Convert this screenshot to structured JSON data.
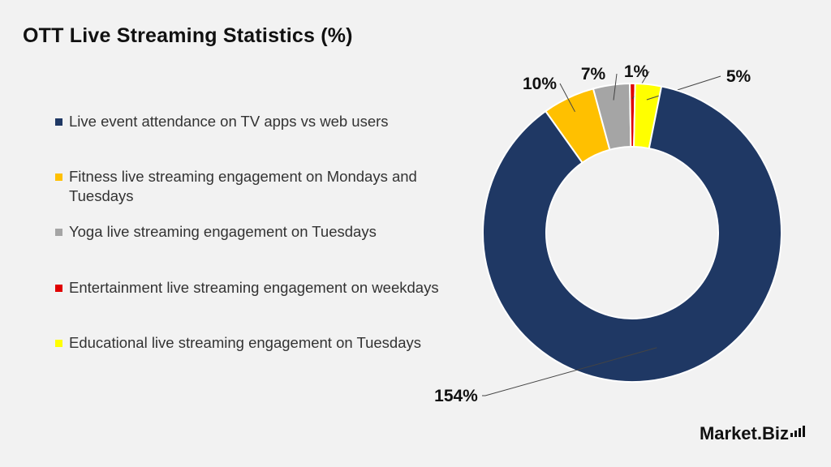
{
  "chart_data": {
    "type": "pie",
    "title": "OTT Live Streaming Statistics (%)",
    "categories": [
      "Live event attendance on TV apps vs web users",
      "Fitness live streaming engagement on Mondays and Tuesdays",
      "Yoga live streaming engagement on Tuesdays",
      "Entertainment live streaming engagement on weekdays",
      "Educational live streaming engagement on Tuesdays"
    ],
    "values": [
      154,
      10,
      7,
      1,
      5
    ],
    "labels": [
      "154%",
      "10%",
      "7%",
      "1%",
      "5%"
    ],
    "colors": [
      "#1f3864",
      "#ffc000",
      "#a5a5a5",
      "#e00000",
      "#ffff00"
    ],
    "legend_position": "left",
    "donut": true
  },
  "logo": {
    "text": "Market.Biz"
  }
}
